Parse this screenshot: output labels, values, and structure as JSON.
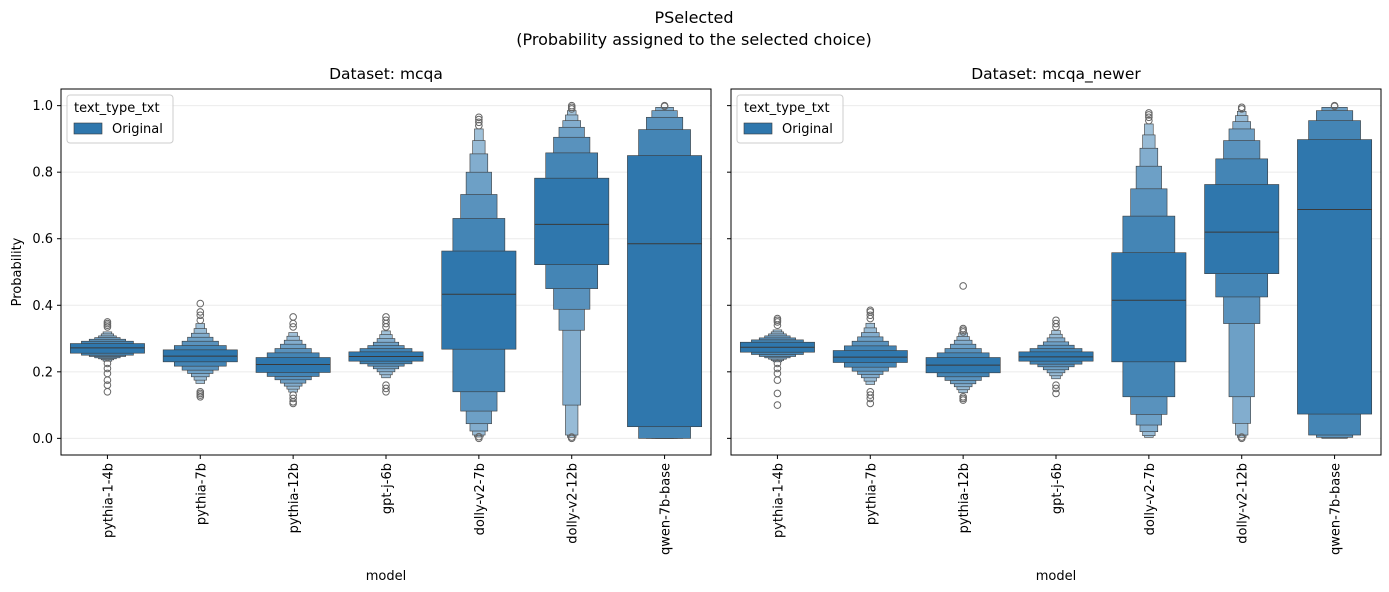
{
  "figure": {
    "title_line1": "PSelected",
    "title_line2": "(Probability assigned to the selected choice)"
  },
  "colors": {
    "box": "#2f77ad",
    "edge": "#3a3a3a",
    "grid": "#ebebeb",
    "outlier": "#666666"
  },
  "chart_data": [
    {
      "type": "boxen",
      "title": "Dataset: mcqa",
      "xlabel": "model",
      "ylabel": "Probability",
      "ylim": [
        -0.05,
        1.05
      ],
      "yticks": [
        0.0,
        0.2,
        0.4,
        0.6,
        0.8,
        1.0
      ],
      "ytick_labels": [
        "0.0",
        "0.2",
        "0.4",
        "0.6",
        "0.8",
        "1.0"
      ],
      "grid": "horizontal",
      "legend": {
        "title": "text_type_txt",
        "entries": [
          "Original"
        ],
        "position": "top-left"
      },
      "categories": [
        "pythia-1-4b",
        "pythia-7b",
        "pythia-12b",
        "gpt-j-6b",
        "dolly-v2-7b",
        "dolly-v2-12b",
        "qwen-7b-base"
      ],
      "series": [
        {
          "name": "Original",
          "boxes": [
            {
              "median": 0.272,
              "levels": [
                [
                  0.256,
                  0.285
                ],
                [
                  0.25,
                  0.292
                ],
                [
                  0.246,
                  0.298
                ],
                [
                  0.242,
                  0.303
                ],
                [
                  0.239,
                  0.308
                ],
                [
                  0.236,
                  0.314
                ],
                [
                  0.232,
                  0.32
                ]
              ],
              "outliers": [
                0.14,
                0.16,
                0.175,
                0.195,
                0.21,
                0.225,
                0.335,
                0.34,
                0.345,
                0.35
              ]
            },
            {
              "median": 0.247,
              "levels": [
                [
                  0.23,
                  0.266
                ],
                [
                  0.217,
                  0.279
                ],
                [
                  0.205,
                  0.292
                ],
                [
                  0.195,
                  0.304
                ],
                [
                  0.185,
                  0.316
                ],
                [
                  0.175,
                  0.33
                ],
                [
                  0.165,
                  0.345
                ]
              ],
              "outliers": [
                0.125,
                0.13,
                0.135,
                0.14,
                0.355,
                0.37,
                0.38,
                0.405
              ]
            },
            {
              "median": 0.222,
              "levels": [
                [
                  0.198,
                  0.243
                ],
                [
                  0.186,
                  0.257
                ],
                [
                  0.176,
                  0.27
                ],
                [
                  0.166,
                  0.283
                ],
                [
                  0.157,
                  0.295
                ],
                [
                  0.148,
                  0.307
                ],
                [
                  0.139,
                  0.318
                ]
              ],
              "outliers": [
                0.105,
                0.11,
                0.12,
                0.13,
                0.335,
                0.345,
                0.365
              ]
            },
            {
              "median": 0.246,
              "levels": [
                [
                  0.232,
                  0.26
                ],
                [
                  0.224,
                  0.27
                ],
                [
                  0.217,
                  0.279
                ],
                [
                  0.209,
                  0.289
                ],
                [
                  0.2,
                  0.3
                ],
                [
                  0.191,
                  0.312
                ],
                [
                  0.182,
                  0.323
                ]
              ],
              "outliers": [
                0.14,
                0.15,
                0.16,
                0.335,
                0.345,
                0.355,
                0.365
              ]
            },
            {
              "median": 0.433,
              "levels": [
                [
                  0.268,
                  0.563
                ],
                [
                  0.14,
                  0.661
                ],
                [
                  0.082,
                  0.733
                ],
                [
                  0.044,
                  0.8
                ],
                [
                  0.022,
                  0.855
                ],
                [
                  0.01,
                  0.895
                ],
                [
                  0.004,
                  0.93
                ]
              ],
              "outliers": [
                0.0,
                0.005,
                0.94,
                0.95,
                0.958,
                0.965
              ]
            },
            {
              "median": 0.643,
              "levels": [
                [
                  0.522,
                  0.782
                ],
                [
                  0.45,
                  0.858
                ],
                [
                  0.388,
                  0.905
                ],
                [
                  0.325,
                  0.935
                ],
                [
                  0.1,
                  0.955
                ],
                [
                  0.01,
                  0.972
                ],
                [
                  0.003,
                  0.985
                ]
              ],
              "outliers": [
                0.0,
                0.004,
                0.99,
                0.995,
                1.0
              ]
            },
            {
              "median": 0.585,
              "levels": [
                [
                  0.035,
                  0.85
                ],
                [
                  0.0,
                  0.928
                ],
                [
                  0.0,
                  0.965
                ],
                [
                  0.0,
                  0.985
                ],
                [
                  0.0,
                  0.995
                ]
              ],
              "outliers": [
                0.998,
                1.0
              ]
            }
          ]
        }
      ]
    },
    {
      "type": "boxen",
      "title": "Dataset: mcqa_newer",
      "xlabel": "model",
      "ylabel": "",
      "ylim": [
        -0.05,
        1.05
      ],
      "yticks": [
        0.0,
        0.2,
        0.4,
        0.6,
        0.8,
        1.0
      ],
      "ytick_labels": [],
      "grid": "horizontal",
      "legend": {
        "title": "text_type_txt",
        "entries": [
          "Original"
        ],
        "position": "top-left"
      },
      "categories": [
        "pythia-1-4b",
        "pythia-7b",
        "pythia-12b",
        "gpt-j-6b",
        "dolly-v2-7b",
        "dolly-v2-12b",
        "qwen-7b-base"
      ],
      "series": [
        {
          "name": "Original",
          "boxes": [
            {
              "median": 0.274,
              "levels": [
                [
                  0.259,
                  0.289
                ],
                [
                  0.252,
                  0.296
                ],
                [
                  0.246,
                  0.302
                ],
                [
                  0.242,
                  0.308
                ],
                [
                  0.238,
                  0.314
                ],
                [
                  0.234,
                  0.32
                ],
                [
                  0.23,
                  0.326
                ]
              ],
              "outliers": [
                0.1,
                0.135,
                0.175,
                0.195,
                0.21,
                0.225,
                0.34,
                0.35,
                0.355,
                0.36
              ]
            },
            {
              "median": 0.244,
              "levels": [
                [
                  0.228,
                  0.264
                ],
                [
                  0.214,
                  0.278
                ],
                [
                  0.202,
                  0.292
                ],
                [
                  0.192,
                  0.305
                ],
                [
                  0.182,
                  0.318
                ],
                [
                  0.172,
                  0.332
                ],
                [
                  0.162,
                  0.346
                ]
              ],
              "outliers": [
                0.105,
                0.12,
                0.13,
                0.14,
                0.36,
                0.37,
                0.38,
                0.385
              ]
            },
            {
              "median": 0.22,
              "levels": [
                [
                  0.197,
                  0.243
                ],
                [
                  0.185,
                  0.257
                ],
                [
                  0.174,
                  0.27
                ],
                [
                  0.164,
                  0.283
                ],
                [
                  0.155,
                  0.295
                ],
                [
                  0.146,
                  0.306
                ],
                [
                  0.137,
                  0.317
                ]
              ],
              "outliers": [
                0.115,
                0.12,
                0.125,
                0.32,
                0.325,
                0.33,
                0.458
              ]
            },
            {
              "median": 0.245,
              "levels": [
                [
                  0.232,
                  0.26
                ],
                [
                  0.223,
                  0.27
                ],
                [
                  0.215,
                  0.28
                ],
                [
                  0.206,
                  0.29
                ],
                [
                  0.197,
                  0.302
                ],
                [
                  0.188,
                  0.313
                ],
                [
                  0.179,
                  0.324
                ]
              ],
              "outliers": [
                0.135,
                0.15,
                0.16,
                0.335,
                0.345,
                0.355
              ]
            },
            {
              "median": 0.415,
              "levels": [
                [
                  0.23,
                  0.558
                ],
                [
                  0.125,
                  0.668
                ],
                [
                  0.072,
                  0.75
                ],
                [
                  0.04,
                  0.818
                ],
                [
                  0.02,
                  0.872
                ],
                [
                  0.008,
                  0.912
                ],
                [
                  0.003,
                  0.945
                ]
              ],
              "outliers": [
                0.955,
                0.965,
                0.972,
                0.978
              ]
            },
            {
              "median": 0.62,
              "levels": [
                [
                  0.495,
                  0.763
                ],
                [
                  0.425,
                  0.84
                ],
                [
                  0.345,
                  0.895
                ],
                [
                  0.125,
                  0.93
                ],
                [
                  0.045,
                  0.952
                ],
                [
                  0.01,
                  0.97
                ],
                [
                  0.003,
                  0.983
                ]
              ],
              "outliers": [
                0.0,
                0.004,
                0.99,
                0.995
              ]
            },
            {
              "median": 0.688,
              "levels": [
                [
                  0.073,
                  0.898
                ],
                [
                  0.01,
                  0.955
                ],
                [
                  0.003,
                  0.985
                ],
                [
                  0.0,
                  0.995
                ]
              ],
              "outliers": [
                0.998,
                1.0
              ]
            }
          ]
        }
      ]
    }
  ]
}
